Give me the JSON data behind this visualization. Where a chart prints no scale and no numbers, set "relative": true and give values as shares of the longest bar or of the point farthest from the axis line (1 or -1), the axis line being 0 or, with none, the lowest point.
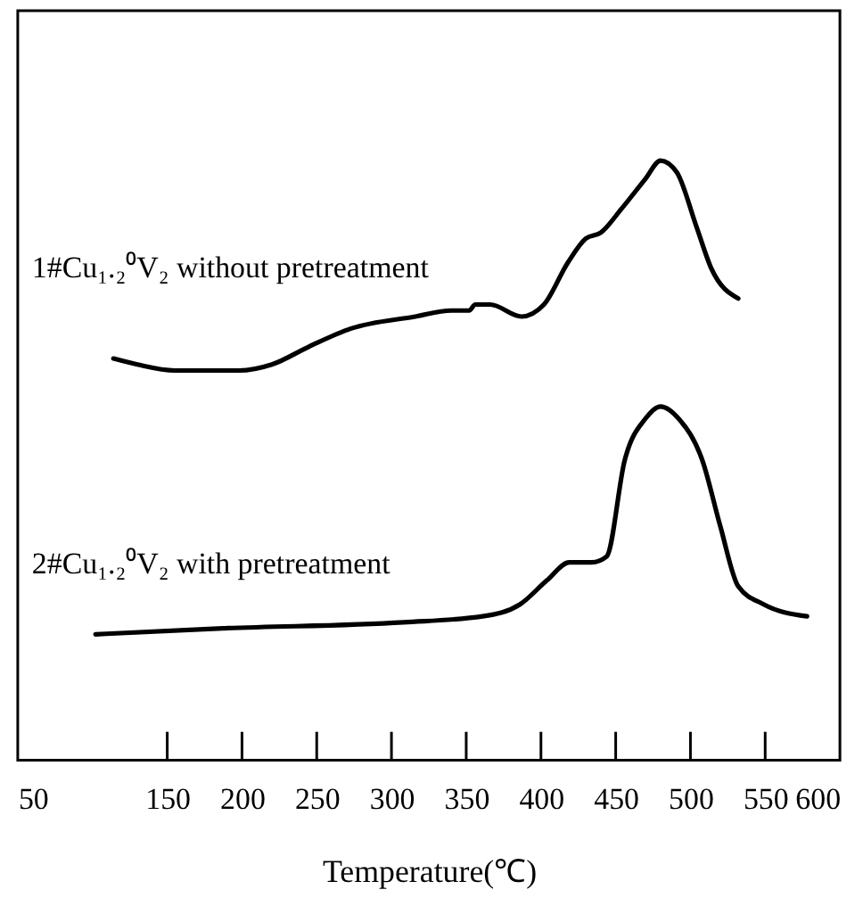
{
  "chart_data": {
    "type": "line",
    "relative": true,
    "xlabel": "Temperature(℃)",
    "xlim": [
      50,
      600
    ],
    "xticks": [
      {
        "value": 50,
        "label": "50"
      },
      150,
      200,
      250,
      300,
      350,
      400,
      450,
      500,
      550,
      {
        "value": 600,
        "label": "600"
      }
    ],
    "series": [
      {
        "name": "1#Cu₁.₂⁰V₂ without pretreatment",
        "color": "#000000",
        "x": [
          114,
          130,
          155,
          198,
          220,
          245,
          273,
          316,
          340,
          352,
          356,
          366,
          387,
          402,
          418,
          430,
          440,
          454,
          470,
          480,
          491,
          504,
          514,
          532
        ],
        "values": [
          0.67,
          0.66,
          0.65,
          0.65,
          0.66,
          0.69,
          0.72,
          0.74,
          0.75,
          0.75,
          0.76,
          0.76,
          0.74,
          0.76,
          0.83,
          0.87,
          0.88,
          0.92,
          0.97,
          1.0,
          0.98,
          0.89,
          0.82,
          0.77
        ]
      },
      {
        "name": "2#Cu₁.₂⁰V₂ with pretreatment",
        "color": "#000000",
        "x": [
          102,
          187,
          308,
          361,
          386,
          404,
          419,
          434,
          444,
          456,
          470,
          480,
          492,
          508,
          520,
          532,
          549,
          578
        ],
        "values": [
          0.21,
          0.22,
          0.23,
          0.24,
          0.26,
          0.3,
          0.33,
          0.33,
          0.34,
          0.5,
          0.57,
          0.59,
          0.57,
          0.5,
          0.39,
          0.29,
          0.26,
          0.24
        ]
      }
    ],
    "grid": false,
    "marker": "none",
    "line_style": "solid",
    "tick_labels": "x"
  }
}
